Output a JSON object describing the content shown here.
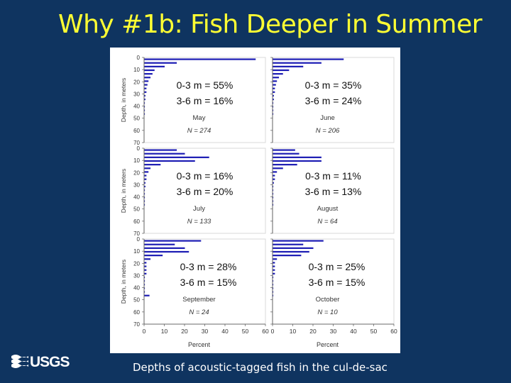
{
  "title": "Why #1b: Fish Deeper in Summer",
  "caption": "Depths of acoustic-tagged fish in the cul-de-sac",
  "logo": {
    "text": "USGS",
    "icon": "usgs-wave-logo-icon"
  },
  "colors": {
    "background": "#0f3460",
    "title": "#ffff33",
    "bar": "#1c1cb4"
  },
  "chart_data": {
    "type": "bar",
    "orientation": "horizontal",
    "xlabel": "Percent",
    "ylabel": "Depth, in meters",
    "xlim": [
      0,
      60
    ],
    "ylim": [
      0,
      70
    ],
    "xticks": [
      0,
      10,
      20,
      30,
      40,
      50,
      60
    ],
    "yticks": [
      0,
      10,
      20,
      30,
      40,
      50,
      60,
      70
    ],
    "depth_bins": [
      1.5,
      4.5,
      7.5,
      10.5,
      13.5,
      16.5,
      19.5,
      22.5,
      25.5,
      28.5,
      31.5,
      34.5,
      37.5,
      40.5,
      43.5,
      46.5
    ],
    "panels": [
      {
        "month": "May",
        "n": "N = 274",
        "stat1": "0-3 m = 55%",
        "stat2": "3-6 m = 16%",
        "values": [
          55,
          16,
          10,
          5,
          4,
          3,
          2,
          1.5,
          1,
          1,
          0.5,
          0.5,
          0,
          0,
          0,
          0
        ]
      },
      {
        "month": "June",
        "n": "N = 206",
        "stat1": "0-3 m = 35%",
        "stat2": "3-6 m = 24%",
        "values": [
          35,
          24,
          15,
          8,
          5,
          3,
          2,
          1.5,
          1,
          1,
          0.5,
          0.5,
          0,
          0,
          0,
          0
        ]
      },
      {
        "month": "July",
        "n": "N = 133",
        "stat1": "0-3 m = 16%",
        "stat2": "3-6 m = 20%",
        "values": [
          16,
          20,
          32,
          25,
          8,
          3,
          2,
          1,
          1,
          0.5,
          0.5,
          0,
          0,
          0,
          0,
          0
        ]
      },
      {
        "month": "August",
        "n": "N = 64",
        "stat1": "0-3 m = 11%",
        "stat2": "3-6 m = 13%",
        "values": [
          11,
          13,
          24,
          24,
          12,
          5,
          2,
          1,
          1,
          0.5,
          0,
          0,
          0,
          0,
          0,
          0
        ]
      },
      {
        "month": "September",
        "n": "N = 24",
        "stat1": "0-3 m = 28%",
        "stat2": "3-6 m = 15%",
        "values": [
          28,
          15,
          20,
          22,
          9,
          3,
          1,
          1,
          1,
          1,
          0,
          0,
          0,
          0,
          0,
          2.5
        ]
      },
      {
        "month": "October",
        "n": "N = 10",
        "stat1": "0-3 m = 25%",
        "stat2": "3-6 m = 15%",
        "values": [
          25,
          15,
          20,
          18,
          14,
          2,
          1,
          1,
          1,
          1,
          0,
          0,
          0,
          0,
          0,
          0
        ]
      }
    ]
  }
}
